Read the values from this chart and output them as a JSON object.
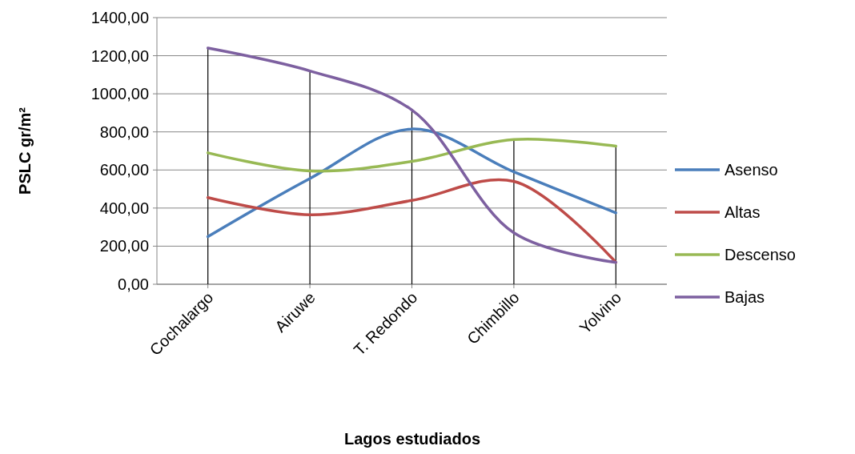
{
  "chart_data": {
    "type": "line",
    "xlabel": "Lagos estudiados",
    "ylabel": "PSLC gr/m²",
    "categories": [
      "Cochalargo",
      "Airuwe",
      "T. Redondo",
      "Chimbillo",
      "Yolvino"
    ],
    "series": [
      {
        "name": "Asenso",
        "color": "#4a7ebb",
        "values": [
          250,
          555,
          815,
          590,
          375
        ]
      },
      {
        "name": "Altas",
        "color": "#be4b48",
        "values": [
          455,
          365,
          440,
          540,
          115
        ]
      },
      {
        "name": "Descenso",
        "color": "#98b954",
        "values": [
          690,
          595,
          645,
          760,
          725
        ]
      },
      {
        "name": "Bajas",
        "color": "#7d60a0",
        "values": [
          1240,
          1120,
          915,
          270,
          115
        ]
      },
      {
        "type": "bar",
        "color": "#000000",
        "values": [
          1240,
          1120,
          915,
          760,
          725
        ]
      }
    ],
    "ylim": [
      0,
      1400
    ],
    "yticks": [
      {
        "value": 0,
        "label": "0,00"
      },
      {
        "value": 200,
        "label": "200,00"
      },
      {
        "value": 400,
        "label": "400,00"
      },
      {
        "value": 600,
        "label": "600,00"
      },
      {
        "value": 800,
        "label": "800,00"
      },
      {
        "value": 1000,
        "label": "1000,00"
      },
      {
        "value": 1200,
        "label": "1200,00"
      },
      {
        "value": 1400,
        "label": "1400,00"
      }
    ],
    "grid": "y",
    "legend": "right",
    "marker": "none",
    "line_style": "solid"
  }
}
